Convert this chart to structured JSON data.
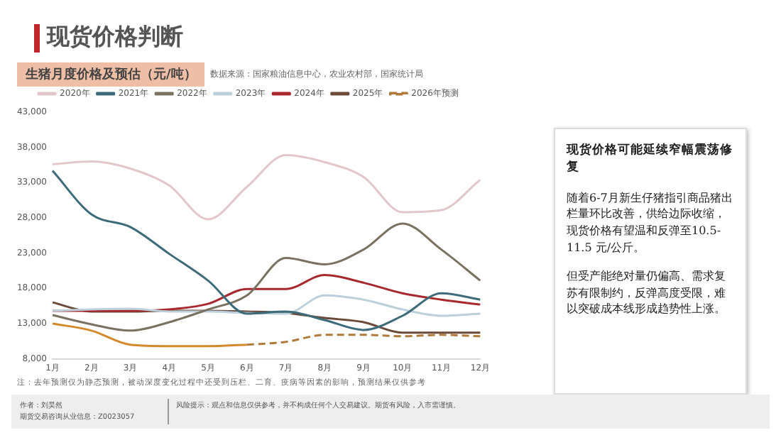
{
  "chart_data": {
    "type": "line",
    "title": "现货价格判断",
    "subtitle": "生猪月度价格及预估（元/吨）",
    "categories": [
      "1月",
      "2月",
      "3月",
      "4月",
      "5月",
      "6月",
      "7月",
      "8月",
      "9月",
      "10月",
      "11月",
      "12月"
    ],
    "series": [
      {
        "name": "2020年",
        "color": "#e3c6ca",
        "values": [
          35600,
          36000,
          35000,
          32600,
          27800,
          32400,
          36900,
          35900,
          33800,
          28800,
          29100,
          33400
        ]
      },
      {
        "name": "2021年",
        "color": "#3e6b7a",
        "values": [
          34700,
          28500,
          26700,
          22900,
          19100,
          14400,
          14700,
          13500,
          12100,
          14100,
          17300,
          16400
        ]
      },
      {
        "name": "2022年",
        "color": "#7a7260",
        "values": [
          14200,
          12900,
          12000,
          13200,
          15000,
          17000,
          22300,
          21400,
          23500,
          27200,
          23500,
          19100
        ]
      },
      {
        "name": "2023年",
        "color": "#bcd0dc",
        "values": [
          14800,
          15000,
          15100,
          14700,
          14700,
          14500,
          14400,
          17000,
          16400,
          15000,
          14100,
          14400
        ]
      },
      {
        "name": "2024年",
        "color": "#a8282e",
        "values": [
          14800,
          14800,
          14800,
          15000,
          15800,
          17900,
          17900,
          19900,
          18800,
          17300,
          16400,
          15700
        ]
      },
      {
        "name": "2025年",
        "color": "#6b4a3a",
        "values": [
          16000,
          14700,
          14700,
          14800,
          14800,
          14700,
          14500,
          13800,
          13200,
          11700,
          11700,
          11700
        ]
      },
      {
        "name": "2026年预测",
        "color": "#b07a3a",
        "line_style": "dashed",
        "values": [
          null,
          null,
          null,
          null,
          null,
          10000,
          10400,
          11400,
          11400,
          11200,
          11400,
          11200
        ]
      },
      {
        "color": "#d4892a",
        "values": [
          13000,
          12000,
          10000,
          9800,
          9800,
          10000,
          null,
          null,
          null,
          null,
          null,
          null
        ]
      }
    ],
    "ylim": [
      8000,
      43000
    ],
    "yticks": [
      {
        "value": 8000,
        "label": "8,000"
      },
      {
        "value": 13000,
        "label": "13,000"
      },
      {
        "value": 18000,
        "label": "18,000"
      },
      {
        "value": 23000,
        "label": "23,000"
      },
      {
        "value": 28000,
        "label": "28,000"
      },
      {
        "value": 33000,
        "label": "33,000"
      },
      {
        "value": 38000,
        "label": "38,000"
      },
      {
        "value": 43000,
        "label": "43,000"
      }
    ],
    "grid": false,
    "legend": "top",
    "marker": "none",
    "line_style": "solid",
    "annotations": [
      "数据来源：国家粮油信息中心，农业农村部，国家统计局",
      "注：去年预测仅为静态预测，被动深度变化过程中还受到压栏、二育、疫病等因素的影响，预测结果仅供参考",
      "现货价格可能延续窄幅震荡修复",
      "随着6-7月新生仔猪指引商品猪出栏量环比改善，供给边际收缩，现货价格有望温和反弹至10.5-11.5 元/公斤。",
      "但受产能绝对量仍偏高、需求复苏有限制约，反弹高度受限，难以突破成本线形成趋势性上涨。",
      "作者：刘昊然",
      "期货交易咨询从业信息：Z0023057",
      "风险提示：观点和信息仅供参考，并不构成任何个人交易建议。期货有风险，入市需谨慎。"
    ]
  }
}
